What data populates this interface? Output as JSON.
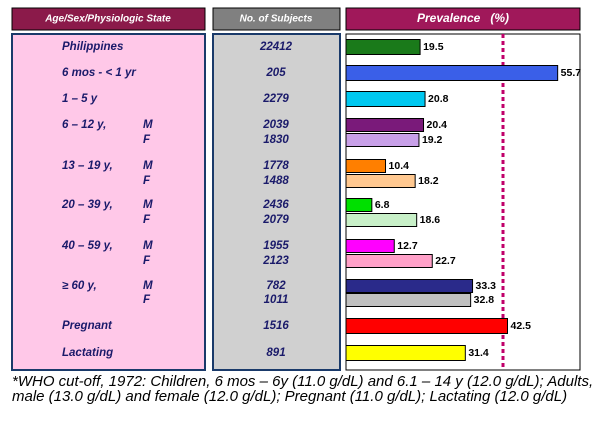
{
  "chart_data": {
    "type": "bar",
    "orientation": "horizontal",
    "columns": [
      "Age/Sex/Physiologic State",
      "No. of Subjects",
      "Prevalence   (%)"
    ],
    "categories": [
      "Philippines",
      "6 mos - < 1 yr",
      "1 – 5 y",
      "6 – 12 y,",
      null,
      "13 – 19 y,",
      null,
      "20 – 39 y,",
      null,
      "40 – 59 y,",
      null,
      "≥ 60 y,",
      null,
      "Pregnant",
      "Lactating"
    ],
    "sex": [
      null,
      null,
      null,
      "M",
      "F",
      "M",
      "F",
      "M",
      "F",
      "M",
      "F",
      "M",
      "F",
      null,
      null
    ],
    "subjects": [
      22412,
      205,
      2279,
      2039,
      1830,
      1778,
      1488,
      2436,
      2079,
      1955,
      2123,
      782,
      1011,
      1516,
      891
    ],
    "values": [
      19.5,
      55.7,
      20.8,
      20.4,
      19.2,
      10.4,
      18.2,
      6.8,
      18.6,
      12.7,
      22.7,
      33.3,
      32.8,
      42.5,
      31.4
    ],
    "colors": [
      "#1a7a1a",
      "#3a5fe8",
      "#00c8f0",
      "#7a1a7a",
      "#c8a0e8",
      "#ff7f00",
      "#ffc890",
      "#00e000",
      "#c8f0c8",
      "#ff00ff",
      "#ffa0c8",
      "#2a2a8a",
      "#c0c0c0",
      "#ff0000",
      "#ffff00"
    ],
    "xlim": [
      0,
      60
    ],
    "footnote": "*WHO cut-off, 1972: Children, 6 mos – 6y (11.0 g/dL) and 6.1 – 14 y (12.0 g/dL); Adults, male (13.0 g/dL) and female (12.0 g/dL); Pregnant (11.0 g/dL); Lactating (12.0 g/dL)"
  }
}
